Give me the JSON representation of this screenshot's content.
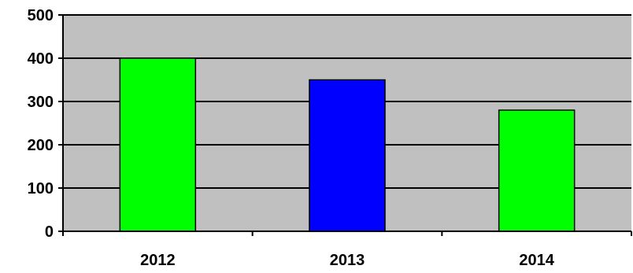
{
  "chart_data": {
    "type": "bar",
    "categories": [
      "2012",
      "2013",
      "2014"
    ],
    "values": [
      400,
      350,
      280
    ],
    "bar_colors": [
      "#00ff00",
      "#0000ff",
      "#00ff00"
    ],
    "ylim": [
      0,
      500
    ],
    "yticks": [
      0,
      100,
      200,
      300,
      400,
      500
    ],
    "ytick_labels": [
      "0",
      "100",
      "200",
      "300",
      "400",
      "500"
    ],
    "grid": true,
    "legend": "none",
    "plot_background": "#c0c0c0",
    "gridline_color": "#000000",
    "title": "",
    "xlabel": "",
    "ylabel": ""
  }
}
